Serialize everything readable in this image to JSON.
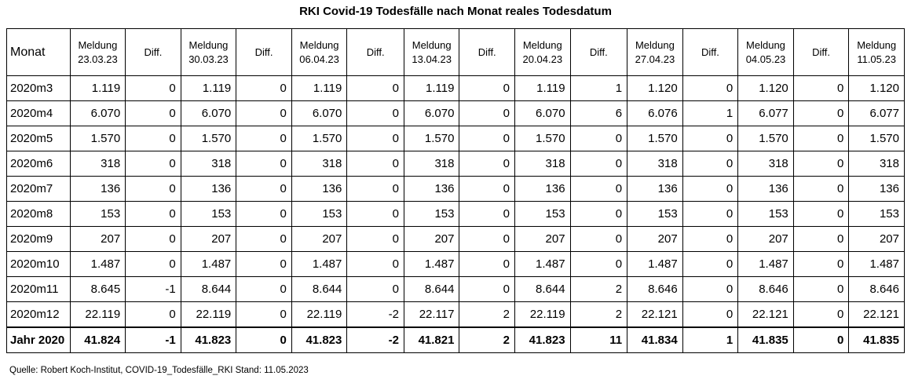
{
  "title": "RKI Covid-19 Todesfälle nach Monat reales Todesdatum",
  "source": "Quelle: Robert Koch-Institut, COVID-19_Todesfälle_RKI Stand: 11.05.2023",
  "chart_data": {
    "type": "table",
    "columns": [
      {
        "l1": "Monat",
        "l2": ""
      },
      {
        "l1": "Meldung",
        "l2": "23.03.23"
      },
      {
        "l1": "Diff.",
        "l2": ""
      },
      {
        "l1": "Meldung",
        "l2": "30.03.23"
      },
      {
        "l1": "Diff.",
        "l2": ""
      },
      {
        "l1": "Meldung",
        "l2": "06.04.23"
      },
      {
        "l1": "Diff.",
        "l2": ""
      },
      {
        "l1": "Meldung",
        "l2": "13.04.23"
      },
      {
        "l1": "Diff.",
        "l2": ""
      },
      {
        "l1": "Meldung",
        "l2": "20.04.23"
      },
      {
        "l1": "Diff.",
        "l2": ""
      },
      {
        "l1": "Meldung",
        "l2": "27.04.23"
      },
      {
        "l1": "Diff.",
        "l2": ""
      },
      {
        "l1": "Meldung",
        "l2": "04.05.23"
      },
      {
        "l1": "Diff.",
        "l2": ""
      },
      {
        "l1": "Meldung",
        "l2": "11.05.23"
      }
    ],
    "rows": [
      [
        "2020m3",
        "1.119",
        "0",
        "1.119",
        "0",
        "1.119",
        "0",
        "1.119",
        "0",
        "1.119",
        "1",
        "1.120",
        "0",
        "1.120",
        "0",
        "1.120"
      ],
      [
        "2020m4",
        "6.070",
        "0",
        "6.070",
        "0",
        "6.070",
        "0",
        "6.070",
        "0",
        "6.070",
        "6",
        "6.076",
        "1",
        "6.077",
        "0",
        "6.077"
      ],
      [
        "2020m5",
        "1.570",
        "0",
        "1.570",
        "0",
        "1.570",
        "0",
        "1.570",
        "0",
        "1.570",
        "0",
        "1.570",
        "0",
        "1.570",
        "0",
        "1.570"
      ],
      [
        "2020m6",
        "318",
        "0",
        "318",
        "0",
        "318",
        "0",
        "318",
        "0",
        "318",
        "0",
        "318",
        "0",
        "318",
        "0",
        "318"
      ],
      [
        "2020m7",
        "136",
        "0",
        "136",
        "0",
        "136",
        "0",
        "136",
        "0",
        "136",
        "0",
        "136",
        "0",
        "136",
        "0",
        "136"
      ],
      [
        "2020m8",
        "153",
        "0",
        "153",
        "0",
        "153",
        "0",
        "153",
        "0",
        "153",
        "0",
        "153",
        "0",
        "153",
        "0",
        "153"
      ],
      [
        "2020m9",
        "207",
        "0",
        "207",
        "0",
        "207",
        "0",
        "207",
        "0",
        "207",
        "0",
        "207",
        "0",
        "207",
        "0",
        "207"
      ],
      [
        "2020m10",
        "1.487",
        "0",
        "1.487",
        "0",
        "1.487",
        "0",
        "1.487",
        "0",
        "1.487",
        "0",
        "1.487",
        "0",
        "1.487",
        "0",
        "1.487"
      ],
      [
        "2020m11",
        "8.645",
        "-1",
        "8.644",
        "0",
        "8.644",
        "0",
        "8.644",
        "0",
        "8.644",
        "2",
        "8.646",
        "0",
        "8.646",
        "0",
        "8.646"
      ],
      [
        "2020m12",
        "22.119",
        "0",
        "22.119",
        "0",
        "22.119",
        "-2",
        "22.117",
        "2",
        "22.119",
        "2",
        "22.121",
        "0",
        "22.121",
        "0",
        "22.121"
      ]
    ],
    "total": [
      "Jahr 2020",
      "41.824",
      "-1",
      "41.823",
      "0",
      "41.823",
      "-2",
      "41.821",
      "2",
      "41.823",
      "11",
      "41.834",
      "1",
      "41.835",
      "0",
      "41.835"
    ]
  }
}
